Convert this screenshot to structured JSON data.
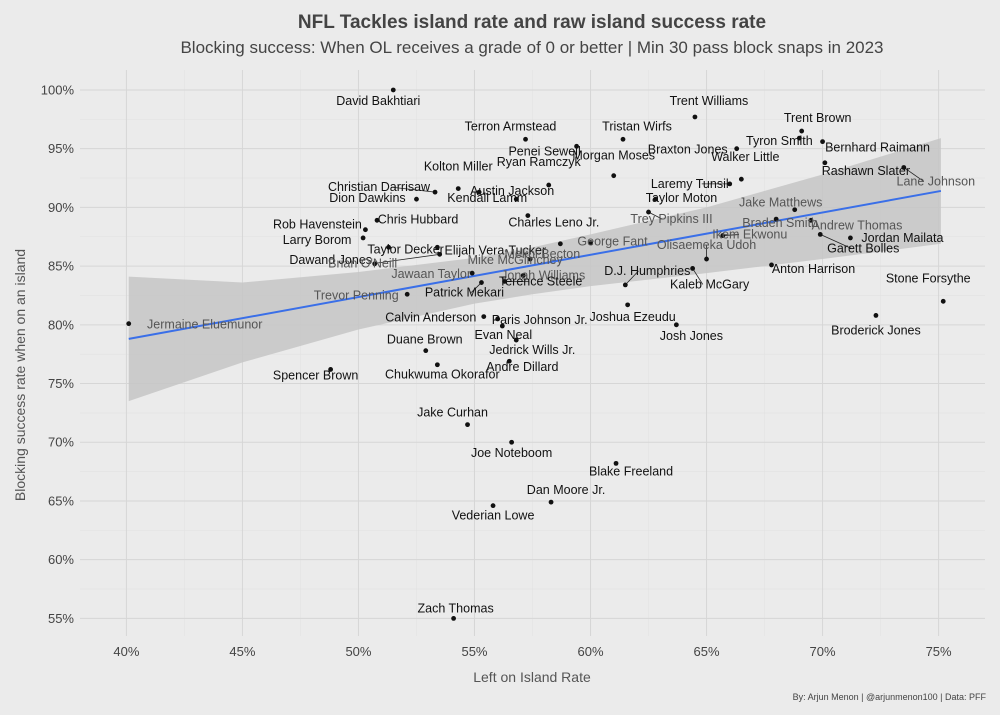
{
  "chart_data": {
    "type": "scatter",
    "title": "NFL Tackles island rate and raw island success rate",
    "subtitle": "Blocking success: When OL receives a grade of 0 or better | Min 30 pass block snaps in 2023",
    "xlabel": "Left on Island Rate",
    "ylabel": "Blocking success rate when on an island",
    "caption": "By: Arjun Menon | @arjunmenon100 | Data: PFF",
    "xlim": [
      38,
      77
    ],
    "ylim": [
      53.5,
      101.7
    ],
    "x_ticks": [
      40,
      45,
      50,
      55,
      60,
      65,
      70,
      75
    ],
    "x_tick_labels": [
      "40%",
      "45%",
      "50%",
      "55%",
      "60%",
      "65%",
      "70%",
      "75%"
    ],
    "y_ticks": [
      55,
      60,
      65,
      70,
      75,
      80,
      85,
      90,
      95,
      100
    ],
    "y_tick_labels": [
      "55%",
      "60%",
      "65%",
      "70%",
      "75%",
      "80%",
      "85%",
      "90%",
      "95%",
      "100%"
    ],
    "grid": true,
    "trend_line": {
      "x": [
        40.1,
        75.1
      ],
      "y": [
        78.8,
        91.4
      ]
    },
    "confidence_band": {
      "x": [
        40.1,
        45,
        50,
        55,
        57.5,
        60,
        65,
        70,
        75.1
      ],
      "lower": [
        73.5,
        76.8,
        79.6,
        81.8,
        82.6,
        83.3,
        84.4,
        85.6,
        86.9
      ],
      "upper": [
        84.1,
        83.6,
        84.5,
        85.7,
        86.6,
        87.7,
        90.0,
        92.8,
        95.9
      ]
    },
    "colors": {
      "points": "#111111",
      "trend": "#3a6fe8",
      "band": "#c6c6c6",
      "background": "#ebebeb"
    },
    "points": [
      {
        "name": "David Bakhtiari",
        "x": 51.5,
        "y": 100.0
      },
      {
        "name": "Trent Williams",
        "x": 64.5,
        "y": 97.7
      },
      {
        "name": "Trent Brown",
        "x": 69.1,
        "y": 96.5
      },
      {
        "name": "Terron Armstead",
        "x": 57.2,
        "y": 95.8
      },
      {
        "name": "Tristan Wirfs",
        "x": 61.4,
        "y": 95.8
      },
      {
        "name": "Penei Sewell",
        "x": 59.4,
        "y": 95.2
      },
      {
        "name": "Braxton Jones",
        "x": 66.3,
        "y": 95.0
      },
      {
        "name": "Tyron Smith",
        "x": 69.0,
        "y": 95.9
      },
      {
        "name": "Bernhard Raimann",
        "x": 70.0,
        "y": 95.6
      },
      {
        "name": "Rashawn Slater",
        "x": 70.1,
        "y": 93.8
      },
      {
        "name": "Kolton Miller",
        "x": 54.3,
        "y": 91.6
      },
      {
        "name": "Ryan Ramczyk",
        "x": 58.2,
        "y": 91.9
      },
      {
        "name": "Morgan Moses",
        "x": 61.0,
        "y": 92.7
      },
      {
        "name": "Walker Little",
        "x": 66.5,
        "y": 92.4
      },
      {
        "name": "Laremy Tunsil",
        "x": 66.0,
        "y": 92.0
      },
      {
        "name": "Lane Johnson",
        "x": 73.5,
        "y": 93.4
      },
      {
        "name": "Christian Darrisaw",
        "x": 53.3,
        "y": 91.3
      },
      {
        "name": "Austin Jackson",
        "x": 55.2,
        "y": 91.3
      },
      {
        "name": "Dion Dawkins",
        "x": 52.5,
        "y": 90.7
      },
      {
        "name": "Kendall Lamm",
        "x": 56.8,
        "y": 90.7
      },
      {
        "name": "Taylor Moton",
        "x": 62.8,
        "y": 90.7
      },
      {
        "name": "Jake Matthews",
        "x": 68.8,
        "y": 89.8
      },
      {
        "name": "Charles Leno Jr.",
        "x": 57.3,
        "y": 89.3
      },
      {
        "name": "Trey Pipkins III",
        "x": 62.5,
        "y": 89.6
      },
      {
        "name": "Braden Smith",
        "x": 68.0,
        "y": 89.0
      },
      {
        "name": "Andrew Thomas",
        "x": 69.5,
        "y": 88.9
      },
      {
        "name": "Rob Havenstein",
        "x": 50.3,
        "y": 88.1
      },
      {
        "name": "Chris Hubbard",
        "x": 50.8,
        "y": 88.9
      },
      {
        "name": "Larry Borom",
        "x": 50.2,
        "y": 87.4
      },
      {
        "name": "Taylor Decker",
        "x": 51.3,
        "y": 86.6
      },
      {
        "name": "Elijah Vera-Tucker",
        "x": 53.4,
        "y": 86.6
      },
      {
        "name": "George Fant",
        "x": 60.0,
        "y": 87.0
      },
      {
        "name": "Olisaemeka Udoh",
        "x": 65.0,
        "y": 85.6
      },
      {
        "name": "Ikem Ekwonu",
        "x": 65.7,
        "y": 87.6
      },
      {
        "name": "Garett Bolles",
        "x": 69.9,
        "y": 87.7
      },
      {
        "name": "Jordan Mailata",
        "x": 71.2,
        "y": 87.4
      },
      {
        "name": "Dawand Jones",
        "x": 50.7,
        "y": 85.2
      },
      {
        "name": "Mike McGlinchey",
        "x": 57.4,
        "y": 85.6
      },
      {
        "name": "Mekhi Becton",
        "x": 58.7,
        "y": 86.9
      },
      {
        "name": "D.J. Humphries",
        "x": 61.5,
        "y": 83.4
      },
      {
        "name": "Anton Harrison",
        "x": 67.8,
        "y": 85.1
      },
      {
        "name": "Brian O'Neill",
        "x": 53.5,
        "y": 86.0
      },
      {
        "name": "Jawaan Taylor",
        "x": 54.9,
        "y": 84.4
      },
      {
        "name": "Jonah Williams",
        "x": 57.1,
        "y": 84.2
      },
      {
        "name": "Kaleb McGary",
        "x": 64.4,
        "y": 84.8
      },
      {
        "name": "Stone Forsythe",
        "x": 75.2,
        "y": 82.0
      },
      {
        "name": "Trevor Penning",
        "x": 52.1,
        "y": 82.6
      },
      {
        "name": "Patrick Mekari",
        "x": 55.3,
        "y": 83.6
      },
      {
        "name": "Terence Steele",
        "x": 56.3,
        "y": 83.7
      },
      {
        "name": "Calvin Anderson",
        "x": 55.4,
        "y": 80.7
      },
      {
        "name": "Paris Johnson Jr.",
        "x": 56.0,
        "y": 80.5
      },
      {
        "name": "Joshua Ezeudu",
        "x": 61.6,
        "y": 81.7
      },
      {
        "name": "Broderick Jones",
        "x": 72.3,
        "y": 80.8
      },
      {
        "name": "Jermaine Eluemunor",
        "x": 40.1,
        "y": 80.1
      },
      {
        "name": "Evan Neal",
        "x": 56.2,
        "y": 79.9
      },
      {
        "name": "Josh Jones",
        "x": 63.7,
        "y": 80.0
      },
      {
        "name": "Duane Brown",
        "x": 52.9,
        "y": 77.8
      },
      {
        "name": "Jedrick Wills Jr.",
        "x": 56.8,
        "y": 78.7
      },
      {
        "name": "Spencer Brown",
        "x": 48.8,
        "y": 76.2
      },
      {
        "name": "Chukwuma Okorafor",
        "x": 53.4,
        "y": 76.6
      },
      {
        "name": "Andre Dillard",
        "x": 56.5,
        "y": 76.9
      },
      {
        "name": "Jake Curhan",
        "x": 54.7,
        "y": 71.5
      },
      {
        "name": "Joe Noteboom",
        "x": 56.6,
        "y": 70.0
      },
      {
        "name": "Blake Freeland",
        "x": 61.1,
        "y": 68.2
      },
      {
        "name": "Dan Moore Jr.",
        "x": 58.3,
        "y": 64.9
      },
      {
        "name": "Vederian Lowe",
        "x": 55.8,
        "y": 64.6
      },
      {
        "name": "Zach Thomas",
        "x": 54.1,
        "y": 55.0
      }
    ]
  }
}
